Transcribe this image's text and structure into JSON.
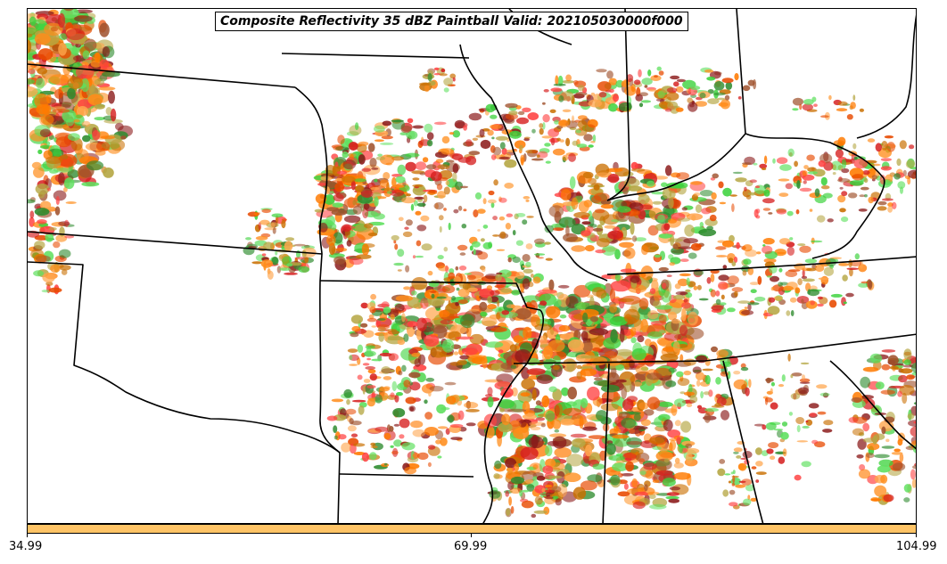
{
  "title": "Composite Reflectivity 35 dBZ Paintball Valid: 202105030000f000",
  "colorbar": {
    "fill_color": "#ffc466",
    "ticks": [
      "34.99",
      "69.99",
      "104.99"
    ]
  },
  "palette": [
    "#ff7a00",
    "#ff8c1a",
    "#e84a00",
    "#d62020",
    "#ff4040",
    "#8b1a1a",
    "#a0522d",
    "#2e8b2e",
    "#3cd23c",
    "#5ee05e",
    "#b5a642",
    "#ffa64d",
    "#c96f00"
  ],
  "boundary_color": "#000000"
}
